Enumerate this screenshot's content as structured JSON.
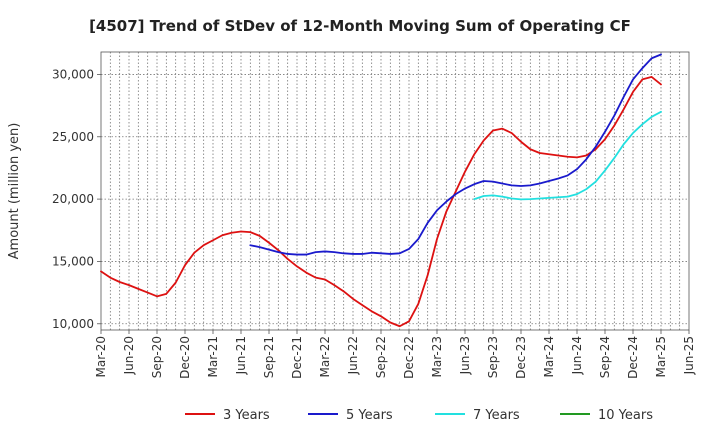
{
  "chart_data": {
    "type": "line",
    "title": "[4507]  Trend of StDev of 12-Month Moving Sum of Operating CF",
    "xlabel": "",
    "ylabel": "Amount (million yen)",
    "ylim": [
      9500,
      31800
    ],
    "yticks": [
      10000,
      15000,
      20000,
      25000,
      30000
    ],
    "ytick_labels": [
      "10,000",
      "15,000",
      "20,000",
      "25,000",
      "30,000"
    ],
    "xticks": [
      "Mar-20",
      "Jun-20",
      "Sep-20",
      "Dec-20",
      "Mar-21",
      "Jun-21",
      "Sep-21",
      "Dec-21",
      "Mar-22",
      "Jun-22",
      "Sep-22",
      "Dec-22",
      "Mar-23",
      "Jun-23",
      "Sep-23",
      "Dec-23",
      "Mar-24",
      "Jun-24",
      "Sep-24",
      "Dec-24",
      "Mar-25",
      "Jun-25"
    ],
    "x_range_months": [
      0,
      63
    ],
    "grid": true,
    "legend_position": "bottom",
    "series": [
      {
        "name": "3 Years",
        "color": "#dd1111",
        "x": [
          0,
          1,
          2,
          3,
          4,
          5,
          6,
          7,
          8,
          9,
          10,
          11,
          12,
          13,
          14,
          15,
          16,
          17,
          18,
          19,
          20,
          21,
          22,
          23,
          24,
          25,
          26,
          27,
          28,
          29,
          30,
          31,
          32,
          33,
          34,
          35,
          36,
          37,
          38,
          39,
          40,
          41,
          42,
          43,
          44,
          45,
          46,
          47,
          48,
          49,
          50,
          51,
          52,
          53,
          54,
          55,
          56,
          57,
          58,
          59,
          60
        ],
        "values": [
          14200,
          13700,
          13350,
          13100,
          12800,
          12500,
          12200,
          12400,
          13300,
          14700,
          15700,
          16300,
          16700,
          17100,
          17300,
          17400,
          17350,
          17050,
          16500,
          15900,
          15200,
          14600,
          14100,
          13700,
          13550,
          13100,
          12600,
          12000,
          11500,
          11000,
          10600,
          10100,
          9800,
          10200,
          11600,
          13900,
          16800,
          19000,
          20600,
          22200,
          23600,
          24700,
          25500,
          25650,
          25300,
          24600,
          24000,
          23700,
          23600,
          23500,
          23400,
          23350,
          23500,
          24000,
          24800,
          25900,
          27200,
          28600,
          29600,
          29800,
          29200
        ]
      },
      {
        "name": "5 Years",
        "color": "#1a1acc",
        "x": [
          16,
          17,
          18,
          19,
          20,
          21,
          22,
          23,
          24,
          25,
          26,
          27,
          28,
          29,
          30,
          31,
          32,
          33,
          34,
          35,
          36,
          37,
          38,
          39,
          40,
          41,
          42,
          43,
          44,
          45,
          46,
          47,
          48,
          49,
          50,
          51,
          52,
          53,
          54,
          55,
          56,
          57,
          58,
          59,
          60
        ],
        "values": [
          16300,
          16150,
          15950,
          15750,
          15600,
          15550,
          15550,
          15750,
          15800,
          15750,
          15650,
          15600,
          15600,
          15700,
          15650,
          15600,
          15650,
          16000,
          16800,
          18100,
          19100,
          19800,
          20400,
          20850,
          21200,
          21450,
          21400,
          21250,
          21100,
          21050,
          21100,
          21250,
          21450,
          21650,
          21900,
          22400,
          23200,
          24200,
          25400,
          26700,
          28200,
          29600,
          30500,
          31300,
          31600
        ]
      },
      {
        "name": "7 Years",
        "color": "#22e0e0",
        "x": [
          40,
          41,
          42,
          43,
          44,
          45,
          46,
          47,
          48,
          49,
          50,
          51,
          52,
          53,
          54,
          55,
          56,
          57,
          58,
          59,
          60
        ],
        "values": [
          20000,
          20250,
          20300,
          20200,
          20050,
          19980,
          20000,
          20050,
          20100,
          20150,
          20200,
          20400,
          20800,
          21400,
          22300,
          23300,
          24400,
          25300,
          26000,
          26600,
          27000
        ]
      },
      {
        "name": "10 Years",
        "color": "#229922",
        "x": [],
        "values": []
      }
    ]
  }
}
